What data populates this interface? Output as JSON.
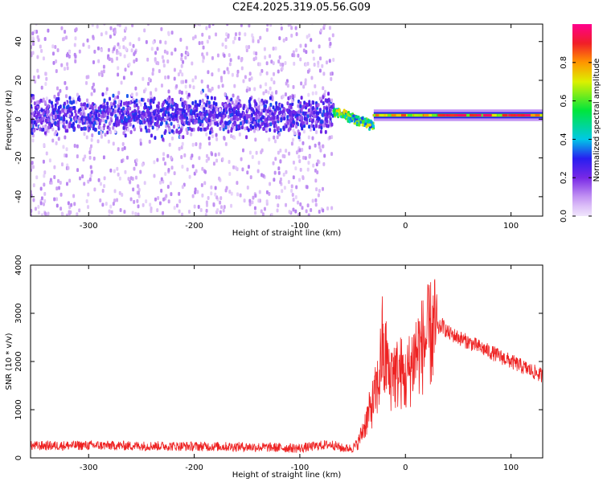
{
  "title": "C2E4.2025.319.05.56.G09",
  "chart_data": [
    {
      "type": "heatmap",
      "title": "C2E4.2025.319.05.56.G09",
      "xlabel": "Height of straight line (km)",
      "ylabel": "Frequency (Hz)",
      "xlim": [
        -355,
        130
      ],
      "ylim": [
        -50,
        49
      ],
      "xticks": [
        -300,
        -200,
        -100,
        0,
        100
      ],
      "yticks": [
        -40,
        -20,
        0,
        20,
        40
      ],
      "colorbar": {
        "label": "Normalized spectral amplitude",
        "range": [
          0.0,
          1.0
        ],
        "ticks": [
          "0.0",
          "0.2",
          "0.4",
          "0.6",
          "0.8"
        ]
      },
      "regions": [
        {
          "name": "noise",
          "x": [
            -355,
            -68
          ],
          "center_freq_hz": 2,
          "band_hz": 14,
          "scatter_hz": 50,
          "amplitude": 0.25
        },
        {
          "name": "transition",
          "x": [
            -68,
            -30
          ],
          "center_freq_hz": [
            4,
            -3
          ],
          "amplitude": 0.65
        },
        {
          "name": "signal",
          "x": [
            -30,
            130
          ],
          "center_freq_hz": 2,
          "band_hz": 2,
          "amplitude": 0.95
        }
      ]
    },
    {
      "type": "line",
      "xlabel": "Height of straight line (km)",
      "ylabel": "SNR (10 * v/v)",
      "xlim": [
        -355,
        130
      ],
      "ylim": [
        0,
        4000
      ],
      "xticks": [
        -300,
        -200,
        -100,
        0,
        100
      ],
      "yticks": [
        0,
        1000,
        2000,
        3000,
        4000
      ],
      "series": [
        {
          "name": "SNR",
          "color": "#ee2222",
          "x": [
            -355,
            -300,
            -250,
            -200,
            -150,
            -100,
            -80,
            -70,
            -60,
            -50,
            -45,
            -40,
            -35,
            -30,
            -25,
            -22,
            -20,
            -18,
            -15,
            -12,
            -10,
            -5,
            0,
            5,
            10,
            15,
            20,
            25,
            30,
            35,
            40,
            50,
            60,
            70,
            80,
            90,
            100,
            110,
            120,
            130
          ],
          "y": [
            250,
            260,
            250,
            240,
            230,
            200,
            260,
            280,
            200,
            200,
            300,
            600,
            900,
            1200,
            1600,
            2400,
            1800,
            2200,
            1500,
            2000,
            1700,
            1800,
            1600,
            1900,
            2200,
            2300,
            2450,
            2600,
            2650,
            2750,
            2600,
            2500,
            2400,
            2300,
            2200,
            2100,
            2000,
            1900,
            1800,
            1700
          ]
        }
      ]
    }
  ]
}
